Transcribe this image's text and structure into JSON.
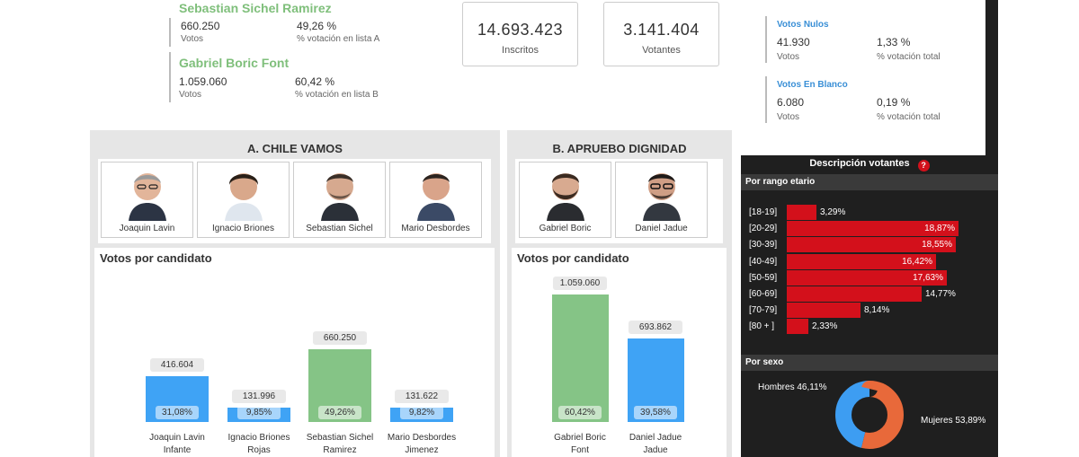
{
  "winners": [
    {
      "name": "Sebastian Sichel Ramirez",
      "votes": "660.250",
      "votes_label": "Votos",
      "pct": "49,26 %",
      "pct_label": "% votación en lista A"
    },
    {
      "name": "Gabriel Boric Font",
      "votes": "1.059.060",
      "votes_label": "Votos",
      "pct": "60,42 %",
      "pct_label": "% votación en lista B"
    }
  ],
  "kpis": [
    {
      "value": "14.693.423",
      "label": "Inscritos"
    },
    {
      "value": "3.141.404",
      "label": "Votantes"
    }
  ],
  "side_stats": [
    {
      "title": "Votos Nulos",
      "votes": "41.930",
      "votes_label": "Votos",
      "pct": "1,33 %",
      "pct_label": "% votación total"
    },
    {
      "title": "Votos En Blanco",
      "votes": "6.080",
      "votes_label": "Votos",
      "pct": "0,19 %",
      "pct_label": "% votación total"
    }
  ],
  "voters": {
    "title": "Descripción votantes",
    "help_icon": "question-circle-icon",
    "age_section": "Por rango etario",
    "age_groups": [
      {
        "label": "[18-19]",
        "value": 3.29,
        "pct": "3,29%"
      },
      {
        "label": "[20-29]",
        "value": 18.87,
        "pct": "18,87%"
      },
      {
        "label": "[30-39]",
        "value": 18.55,
        "pct": "18,55%"
      },
      {
        "label": "[40-49]",
        "value": 16.42,
        "pct": "16,42%"
      },
      {
        "label": "[50-59]",
        "value": 17.63,
        "pct": "17,63%"
      },
      {
        "label": "[60-69]",
        "value": 14.77,
        "pct": "14,77%"
      },
      {
        "label": "[70-79]",
        "value": 8.14,
        "pct": "8,14%"
      },
      {
        "label": "[80 + ]",
        "value": 2.33,
        "pct": "2,33%"
      }
    ],
    "sex_section": "Por sexo",
    "sex": [
      {
        "label": "Hombres 46,11%",
        "value": 46.11,
        "color": "#3d9df2"
      },
      {
        "label": "Mujeres 53,89%",
        "value": 53.89,
        "color": "#e8693a"
      }
    ]
  },
  "lists": [
    {
      "title": "A. CHILE VAMOS",
      "candidates": [
        "Joaquin Lavin",
        "Ignacio Briones",
        "Sebastian Sichel",
        "Mario Desbordes"
      ],
      "chart_title": "Votos por candidato"
    },
    {
      "title": "B. APRUEBO DIGNIDAD",
      "candidates": [
        "Gabriel Boric",
        "Daniel Jadue"
      ],
      "chart_title": "Votos por candidato"
    }
  ],
  "chart_data": [
    {
      "type": "bar",
      "title": "Votos por candidato",
      "categories": [
        [
          "Joaquin Lavin",
          "Infante"
        ],
        [
          "Ignacio Briones",
          "Rojas"
        ],
        [
          "Sebastian Sichel",
          "Ramirez"
        ],
        [
          "Mario Desbordes",
          "Jimenez"
        ]
      ],
      "values": [
        416604,
        131996,
        660250,
        131622
      ],
      "value_labels": [
        "416.604",
        "131.996",
        "660.250",
        "131.622"
      ],
      "pct_labels": [
        "31,08%",
        "9,85%",
        "49,26%",
        "9,82%"
      ],
      "colors": [
        "#3fa3f5",
        "#3fa3f5",
        "#85c486",
        "#3fa3f5"
      ],
      "ylim": [
        0,
        660250
      ]
    },
    {
      "type": "bar",
      "title": "Votos por candidato",
      "categories": [
        [
          "Gabriel Boric",
          "Font"
        ],
        [
          "Daniel Jadue",
          "Jadue"
        ]
      ],
      "values": [
        1059060,
        693862
      ],
      "value_labels": [
        "1.059.060",
        "693.862"
      ],
      "pct_labels": [
        "60,42%",
        "39,58%"
      ],
      "colors": [
        "#85c486",
        "#3fa3f5"
      ],
      "ylim": [
        0,
        1059060
      ]
    }
  ]
}
